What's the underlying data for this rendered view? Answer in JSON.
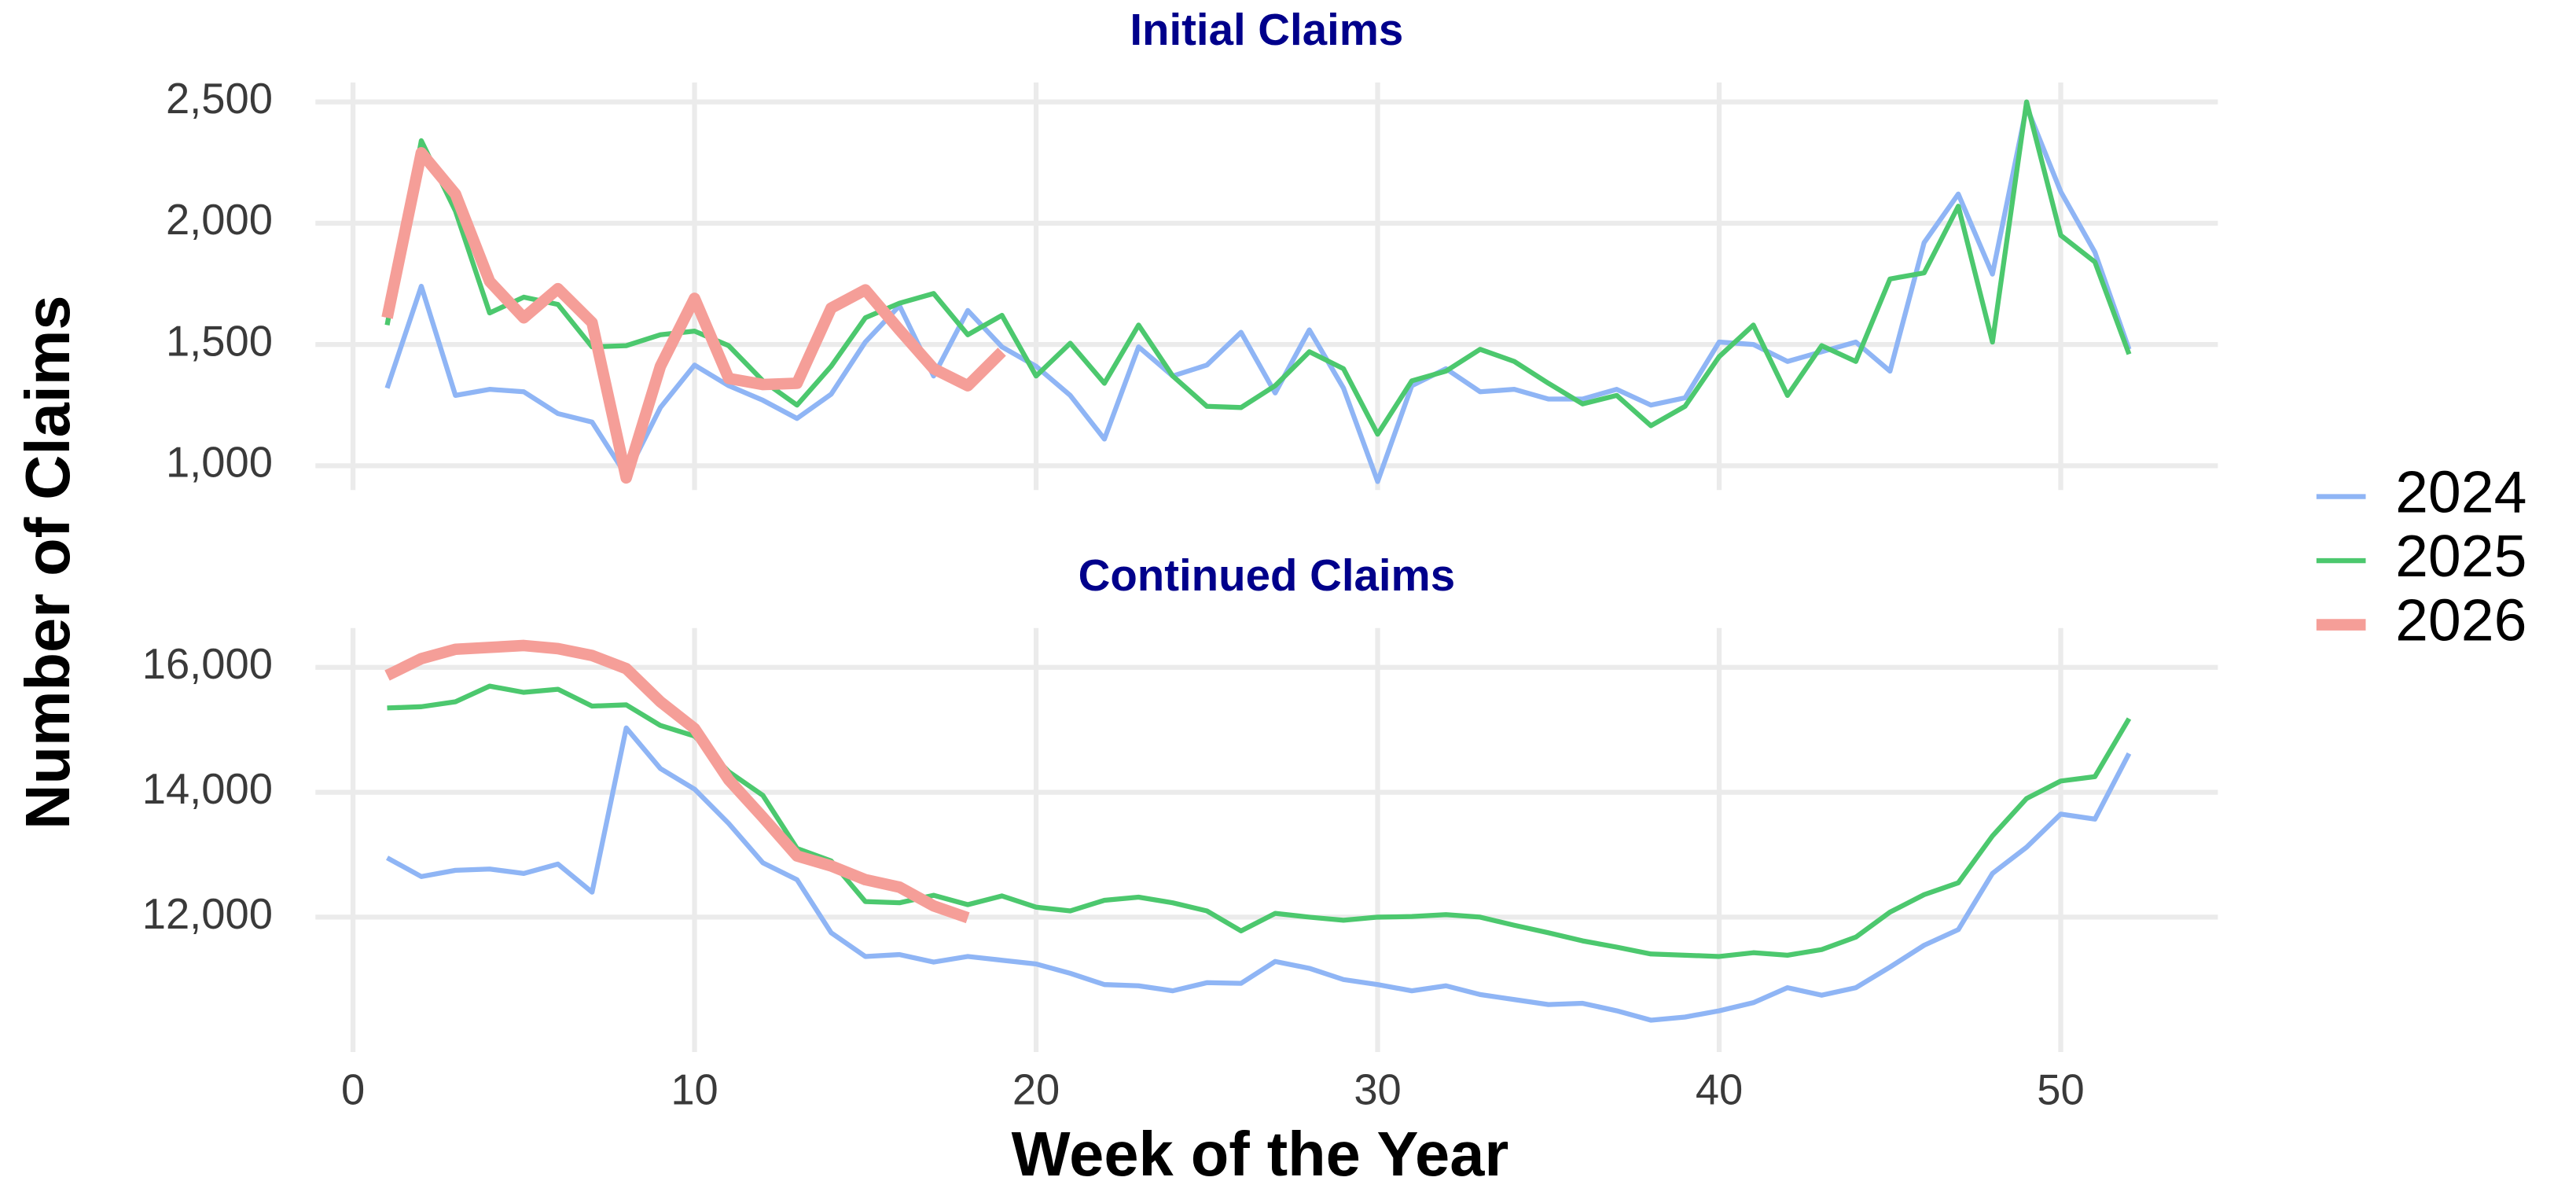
{
  "xlabel": "Week of the Year",
  "ylabel": "Number of Claims",
  "chart_data": [
    {
      "type": "line",
      "title": "Initial Claims",
      "x": [
        1,
        2,
        3,
        4,
        5,
        6,
        7,
        8,
        9,
        10,
        11,
        12,
        13,
        14,
        15,
        16,
        17,
        18,
        19,
        20,
        21,
        22,
        23,
        24,
        25,
        26,
        27,
        28,
        29,
        30,
        31,
        32,
        33,
        34,
        35,
        36,
        37,
        38,
        39,
        40,
        41,
        42,
        43,
        44,
        45,
        46,
        47,
        48,
        49,
        50,
        51,
        52
      ],
      "xlim": [
        -1.1,
        54.6
      ],
      "xticks": [
        0,
        10,
        20,
        30,
        40,
        50
      ],
      "ylim": [
        900,
        2580
      ],
      "yticks": [
        {
          "value": 1000,
          "label": "1,000"
        },
        {
          "value": 1500,
          "label": "1,500"
        },
        {
          "value": 2000,
          "label": "2,000"
        },
        {
          "value": 2500,
          "label": "2,500"
        }
      ],
      "grid": true,
      "series": [
        {
          "name": "2024",
          "color": "#8fb5f5",
          "width": 3,
          "values": [
            1320,
            1740,
            1290,
            1315,
            1305,
            1215,
            1180,
            960,
            1240,
            1415,
            1330,
            1270,
            1195,
            1295,
            1510,
            1660,
            1370,
            1640,
            1490,
            1410,
            1290,
            1110,
            1490,
            1370,
            1415,
            1550,
            1300,
            1560,
            1320,
            935,
            1330,
            1400,
            1305,
            1315,
            1275,
            1275,
            1315,
            1250,
            1280,
            1510,
            1500,
            1430,
            1470,
            1510,
            1390,
            1920,
            2120,
            1790,
            2480,
            2130,
            1880,
            1480
          ]
        },
        {
          "name": "2025",
          "color": "#4cc86e",
          "width": 3,
          "values": [
            1580,
            2340,
            2050,
            1630,
            1695,
            1665,
            1490,
            1495,
            1540,
            1555,
            1495,
            1350,
            1250,
            1410,
            1610,
            1670,
            1710,
            1540,
            1620,
            1370,
            1505,
            1340,
            1580,
            1370,
            1245,
            1240,
            1330,
            1470,
            1400,
            1130,
            1350,
            1390,
            1480,
            1430,
            1340,
            1255,
            1290,
            1165,
            1245,
            1450,
            1580,
            1290,
            1495,
            1430,
            1770,
            1795,
            2070,
            1510,
            2500,
            1950,
            1840,
            1460
          ]
        },
        {
          "name": "2026",
          "color": "#f59e98",
          "width": 7,
          "values": [
            1610,
            2290,
            2120,
            1760,
            1610,
            1730,
            1590,
            950,
            1410,
            1690,
            1360,
            1335,
            1340,
            1650,
            1725,
            1560,
            1400,
            1330,
            1470,
            null,
            null,
            null,
            null,
            null,
            null,
            null,
            null,
            null,
            null,
            null,
            null,
            null,
            null,
            null,
            null,
            null,
            null,
            null,
            null,
            null,
            null,
            null,
            null,
            null,
            null,
            null,
            null,
            null,
            null,
            null,
            null,
            null
          ]
        }
      ]
    },
    {
      "type": "line",
      "title": "Continued Claims",
      "x": [
        1,
        2,
        3,
        4,
        5,
        6,
        7,
        8,
        9,
        10,
        11,
        12,
        13,
        14,
        15,
        16,
        17,
        18,
        19,
        20,
        21,
        22,
        23,
        24,
        25,
        26,
        27,
        28,
        29,
        30,
        31,
        32,
        33,
        34,
        35,
        36,
        37,
        38,
        39,
        40,
        41,
        42,
        43,
        44,
        45,
        46,
        47,
        48,
        49,
        50,
        51,
        52
      ],
      "xlim": [
        -1.1,
        54.6
      ],
      "xticks": [
        0,
        10,
        20,
        30,
        40,
        50
      ],
      "ylim": [
        9840,
        16630
      ],
      "yticks": [
        {
          "value": 12000,
          "label": "12,000"
        },
        {
          "value": 14000,
          "label": "14,000"
        },
        {
          "value": 16000,
          "label": "16,000"
        }
      ],
      "grid": true,
      "series": [
        {
          "name": "2024",
          "color": "#8fb5f5",
          "width": 3,
          "values": [
            12950,
            12650,
            12750,
            12770,
            12700,
            12850,
            12400,
            15030,
            14380,
            14050,
            13500,
            12870,
            12600,
            11750,
            11370,
            11400,
            11280,
            11370,
            11310,
            11250,
            11100,
            10920,
            10900,
            10820,
            10950,
            10940,
            11290,
            11180,
            11000,
            10920,
            10820,
            10900,
            10760,
            10680,
            10600,
            10620,
            10500,
            10350,
            10400,
            10500,
            10630,
            10870,
            10750,
            10870,
            11200,
            11550,
            11800,
            12700,
            13120,
            13650,
            13570,
            14620
          ]
        },
        {
          "name": "2025",
          "color": "#4cc86e",
          "width": 3,
          "values": [
            15350,
            15370,
            15450,
            15700,
            15600,
            15650,
            15380,
            15400,
            15070,
            14900,
            14330,
            13950,
            13100,
            12900,
            12250,
            12230,
            12350,
            12200,
            12340,
            12160,
            12100,
            12270,
            12320,
            12230,
            12100,
            11780,
            12060,
            12000,
            11950,
            12000,
            12010,
            12040,
            12000,
            11870,
            11750,
            11620,
            11520,
            11410,
            11390,
            11370,
            11430,
            11390,
            11480,
            11680,
            12080,
            12360,
            12550,
            13300,
            13900,
            14180,
            14250,
            15180
          ]
        },
        {
          "name": "2026",
          "color": "#f59e98",
          "width": 7,
          "values": [
            15870,
            16140,
            16290,
            16320,
            16350,
            16300,
            16190,
            15980,
            15450,
            15020,
            14200,
            13600,
            12980,
            12820,
            12600,
            12480,
            12180,
            11990,
            null,
            null,
            null,
            null,
            null,
            null,
            null,
            null,
            null,
            null,
            null,
            null,
            null,
            null,
            null,
            null,
            null,
            null,
            null,
            null,
            null,
            null,
            null,
            null,
            null,
            null,
            null,
            null,
            null,
            null,
            null,
            null,
            null,
            null
          ]
        }
      ]
    }
  ]
}
